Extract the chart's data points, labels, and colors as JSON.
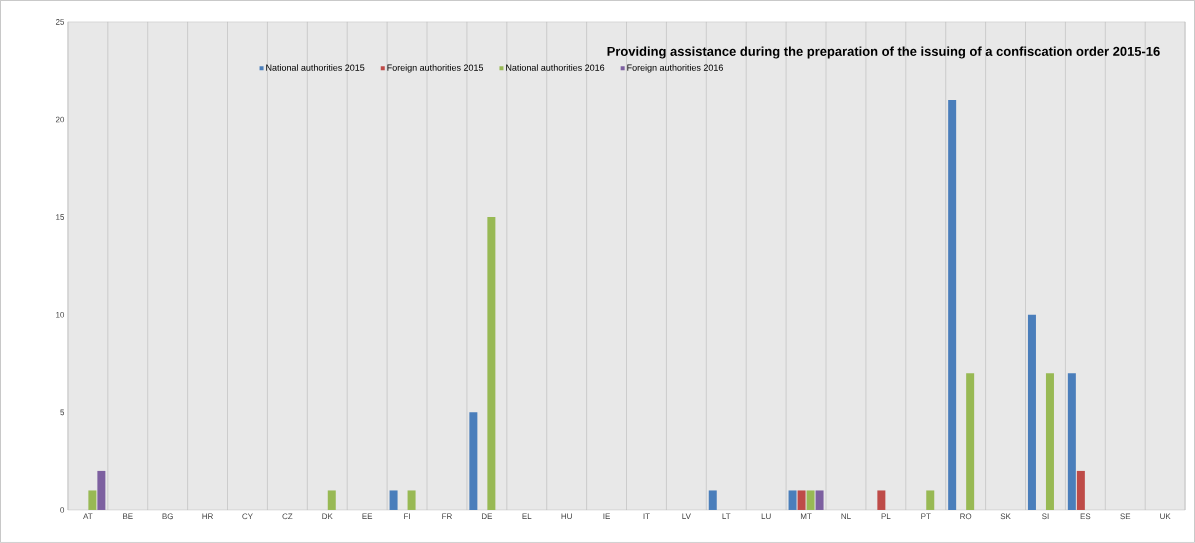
{
  "chart_data": {
    "type": "bar",
    "title": "Providing assistance during the preparation of the issuing of a confiscation order 2015-16",
    "categories": [
      "AT",
      "BE",
      "BG",
      "HR",
      "CY",
      "CZ",
      "DK",
      "EE",
      "FI",
      "FR",
      "DE",
      "EL",
      "HU",
      "IE",
      "IT",
      "LV",
      "LT",
      "LU",
      "MT",
      "NL",
      "PL",
      "PT",
      "RO",
      "SK",
      "SI",
      "ES",
      "SE",
      "UK"
    ],
    "series": [
      {
        "name": "National authorities 2015",
        "color": "#4a7ebb",
        "values": [
          0,
          0,
          0,
          0,
          0,
          0,
          0,
          0,
          1,
          0,
          5,
          0,
          0,
          0,
          0,
          0,
          1,
          0,
          1,
          0,
          0,
          0,
          21,
          0,
          10,
          7,
          0,
          0
        ]
      },
      {
        "name": "Foreign authorities 2015",
        "color": "#be4b48",
        "values": [
          0,
          0,
          0,
          0,
          0,
          0,
          0,
          0,
          0,
          0,
          0,
          0,
          0,
          0,
          0,
          0,
          0,
          0,
          1,
          0,
          1,
          0,
          0,
          0,
          0,
          2,
          0,
          0
        ]
      },
      {
        "name": "National authorities 2016",
        "color": "#98b954",
        "values": [
          1,
          0,
          0,
          0,
          0,
          0,
          1,
          0,
          1,
          0,
          15,
          0,
          0,
          0,
          0,
          0,
          0,
          0,
          1,
          0,
          0,
          1,
          7,
          0,
          7,
          0,
          0,
          0
        ]
      },
      {
        "name": "Foreign authorities 2016",
        "color": "#7d60a0",
        "values": [
          2,
          0,
          0,
          0,
          0,
          0,
          0,
          0,
          0,
          0,
          0,
          0,
          0,
          0,
          0,
          0,
          0,
          0,
          1,
          0,
          0,
          0,
          0,
          0,
          0,
          0,
          0,
          0
        ]
      }
    ],
    "ylim": [
      0,
      25
    ],
    "yticks": [
      0,
      5,
      10,
      15,
      20,
      25
    ],
    "grid": "x",
    "legend": "top"
  }
}
